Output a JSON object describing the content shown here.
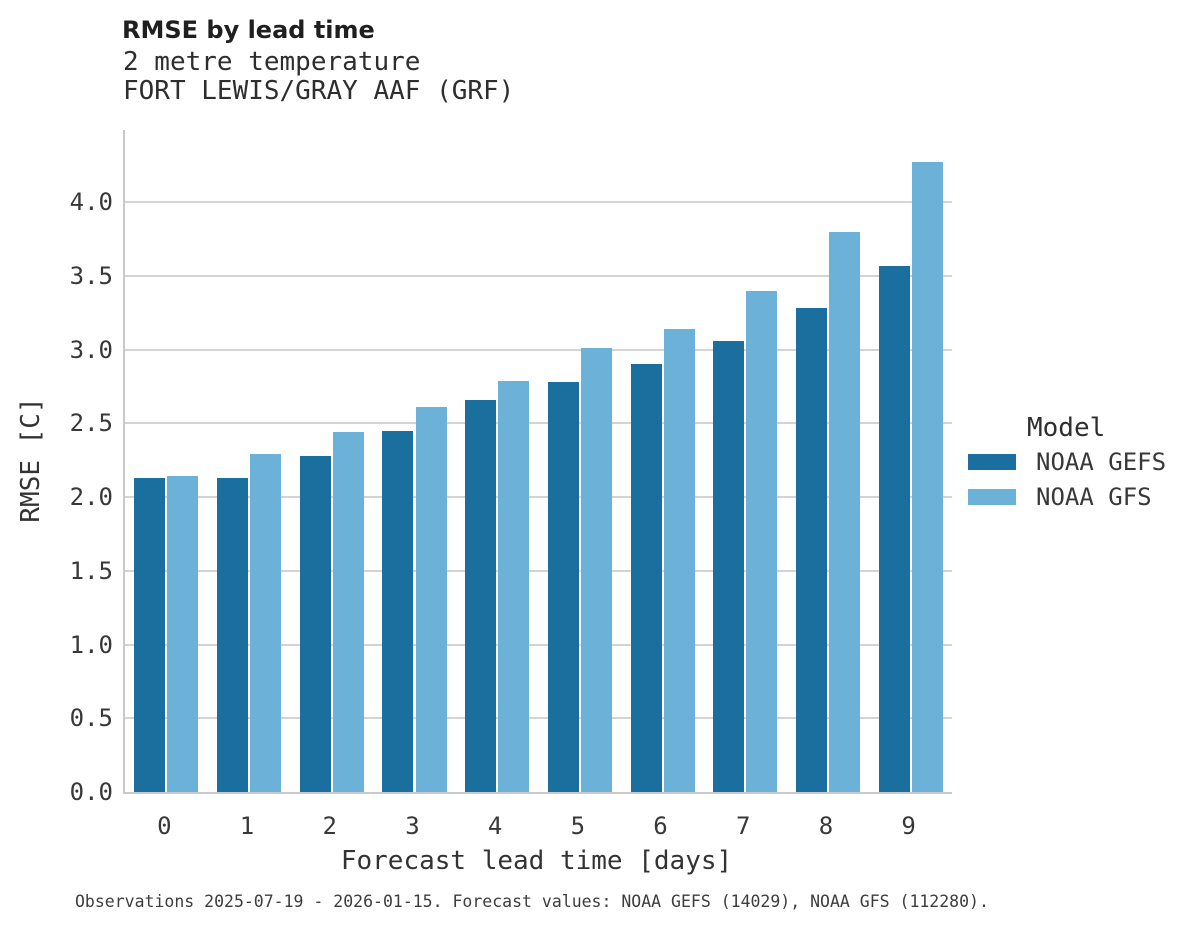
{
  "caption": "Observations 2025-07-19 - 2026-01-15. Forecast values: NOAA GEFS (14029), NOAA GFS (112280).",
  "chart_data": {
    "type": "bar",
    "title": "RMSE by lead time",
    "subtitle": [
      "2 metre temperature",
      "FORT LEWIS/GRAY AAF (GRF)"
    ],
    "xlabel": "Forecast lead time [days]",
    "ylabel": "RMSE [C]",
    "categories": [
      "0",
      "1",
      "2",
      "3",
      "4",
      "5",
      "6",
      "7",
      "8",
      "9"
    ],
    "series": [
      {
        "name": "NOAA GEFS",
        "color": "#1a6f9e",
        "values": [
          2.13,
          2.13,
          2.28,
          2.45,
          2.66,
          2.78,
          2.9,
          3.06,
          3.28,
          3.57
        ]
      },
      {
        "name": "NOAA GFS",
        "color": "#6cb1d8",
        "values": [
          2.14,
          2.29,
          2.44,
          2.61,
          2.79,
          3.01,
          3.14,
          3.4,
          3.8,
          4.27
        ]
      }
    ],
    "ylim": [
      0,
      4.49
    ],
    "yticks": [
      0,
      0.5,
      1,
      1.5,
      2,
      2.5,
      3,
      3.5,
      4
    ],
    "ytick_labels": [
      "0.0",
      "0.5",
      "1.0",
      "1.5",
      "2.0",
      "2.5",
      "3.0",
      "3.5",
      "4.0"
    ],
    "grid": true,
    "legend_title": "Model",
    "legend_position": "right"
  },
  "colors": {
    "grid": "#d4d4d4",
    "spine": "#c9c9c9",
    "background": "#ffffff"
  }
}
